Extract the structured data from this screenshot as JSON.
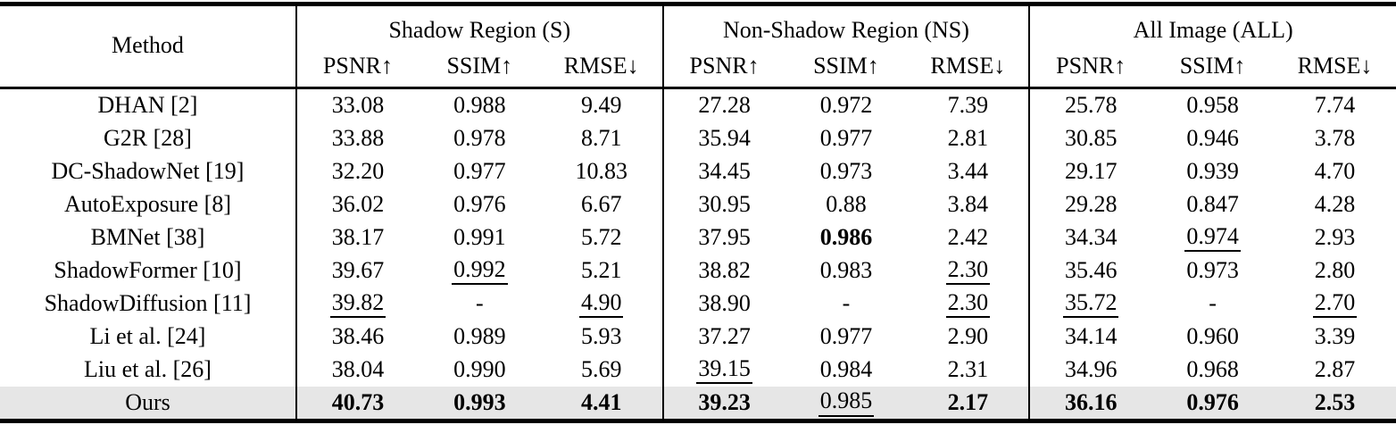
{
  "table": {
    "method_header": "Method",
    "groups": [
      {
        "label": "Shadow Region (S)"
      },
      {
        "label": "Non-Shadow Region (NS)"
      },
      {
        "label": "All Image (ALL)"
      }
    ],
    "metric_headers": [
      "PSNR↑",
      "SSIM↑",
      "RMSE↓"
    ],
    "highlight_color": "#e6e6e6",
    "text_color": "#000000",
    "rows": [
      {
        "method": "DHAN [2]",
        "values": [
          "33.08",
          "0.988",
          "9.49",
          "27.28",
          "0.972",
          "7.39",
          "25.78",
          "0.958",
          "7.74"
        ],
        "styles": [
          "",
          "",
          "",
          "",
          "",
          "",
          "",
          "",
          ""
        ],
        "highlight": false
      },
      {
        "method": "G2R [28]",
        "values": [
          "33.88",
          "0.978",
          "8.71",
          "35.94",
          "0.977",
          "2.81",
          "30.85",
          "0.946",
          "3.78"
        ],
        "styles": [
          "",
          "",
          "",
          "",
          "",
          "",
          "",
          "",
          ""
        ],
        "highlight": false
      },
      {
        "method": "DC-ShadowNet [19]",
        "values": [
          "32.20",
          "0.977",
          "10.83",
          "34.45",
          "0.973",
          "3.44",
          "29.17",
          "0.939",
          "4.70"
        ],
        "styles": [
          "",
          "",
          "",
          "",
          "",
          "",
          "",
          "",
          ""
        ],
        "highlight": false
      },
      {
        "method": "AutoExposure [8]",
        "values": [
          "36.02",
          "0.976",
          "6.67",
          "30.95",
          "0.88",
          "3.84",
          "29.28",
          "0.847",
          "4.28"
        ],
        "styles": [
          "",
          "",
          "",
          "",
          "",
          "",
          "",
          "",
          ""
        ],
        "highlight": false
      },
      {
        "method": "BMNet [38]",
        "values": [
          "38.17",
          "0.991",
          "5.72",
          "37.95",
          "0.986",
          "2.42",
          "34.34",
          "0.974",
          "2.93"
        ],
        "styles": [
          "",
          "",
          "",
          "",
          "b",
          "",
          "",
          "u",
          ""
        ],
        "highlight": false
      },
      {
        "method": "ShadowFormer [10]",
        "values": [
          "39.67",
          "0.992",
          "5.21",
          "38.82",
          "0.983",
          "2.30",
          "35.46",
          "0.973",
          "2.80"
        ],
        "styles": [
          "",
          "u",
          "",
          "",
          "",
          "u",
          "",
          "",
          ""
        ],
        "highlight": false
      },
      {
        "method": "ShadowDiffusion [11]",
        "values": [
          "39.82",
          "-",
          "4.90",
          "38.90",
          "-",
          "2.30",
          "35.72",
          "-",
          "2.70"
        ],
        "styles": [
          "u",
          "",
          "u",
          "",
          "",
          "u",
          "u",
          "",
          "u"
        ],
        "highlight": false
      },
      {
        "method": "Li et al. [24]",
        "values": [
          "38.46",
          "0.989",
          "5.93",
          "37.27",
          "0.977",
          "2.90",
          "34.14",
          "0.960",
          "3.39"
        ],
        "styles": [
          "",
          "",
          "",
          "",
          "",
          "",
          "",
          "",
          ""
        ],
        "highlight": false
      },
      {
        "method": "Liu et al. [26]",
        "values": [
          "38.04",
          "0.990",
          "5.69",
          "39.15",
          "0.984",
          "2.31",
          "34.96",
          "0.968",
          "2.87"
        ],
        "styles": [
          "",
          "",
          "",
          "u",
          "",
          "",
          "",
          "",
          ""
        ],
        "highlight": false
      },
      {
        "method": "Ours",
        "values": [
          "40.73",
          "0.993",
          "4.41",
          "39.23",
          "0.985",
          "2.17",
          "36.16",
          "0.976",
          "2.53"
        ],
        "styles": [
          "b",
          "b",
          "b",
          "b",
          "u",
          "b",
          "b",
          "b",
          "b"
        ],
        "highlight": true
      }
    ]
  }
}
